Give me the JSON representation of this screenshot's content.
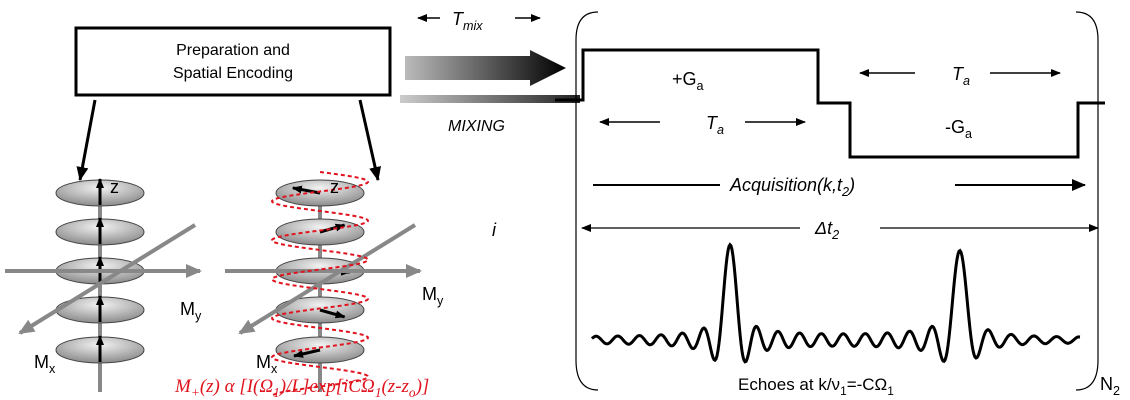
{
  "preparation_box": {
    "lines": [
      "Preparation and",
      "Spatial Encoding"
    ]
  },
  "mixing": {
    "interval": [
      "T",
      "mix"
    ],
    "label": "MIXING"
  },
  "gradient": {
    "positive": [
      "+G",
      "a"
    ],
    "negative": [
      "-G",
      "a"
    ],
    "period_first": [
      "T",
      "a"
    ],
    "period_second": [
      "T",
      "a"
    ]
  },
  "acquisition": [
    "Acquisition(k,t",
    "2",
    ")"
  ],
  "delta": [
    "Δt",
    "2"
  ],
  "stray_label": "i",
  "echoes": [
    "Echoes at k/ν",
    "1",
    "=-CΩ",
    "1"
  ],
  "repeat": [
    "N",
    "2"
  ],
  "left_stack": {
    "axis_z": "z",
    "axis_y": [
      "M",
      "y"
    ],
    "axis_x": [
      "M",
      "x"
    ]
  },
  "right_stack": {
    "axis_z": "z",
    "axis_y": [
      "M",
      "y"
    ],
    "axis_x": [
      "M",
      "x"
    ]
  },
  "formula": [
    "M",
    "+",
    "(z) α [I(Ω",
    "1",
    ")/L]exp[iCΩ",
    "1",
    "(z-z",
    "o",
    ")]"
  ]
}
